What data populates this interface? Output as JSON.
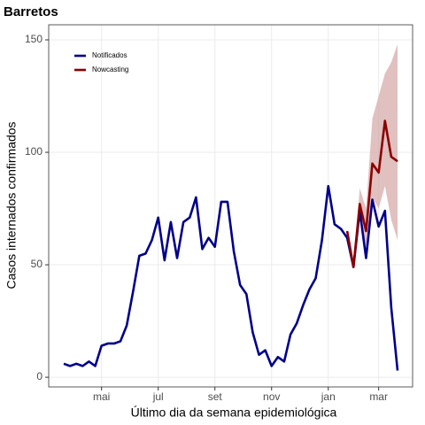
{
  "chart_data": {
    "type": "line",
    "title": "Barretos",
    "x_label": "Último dia da semana epidemiológica",
    "y_label": "Casos internados confirmados",
    "categories": [
      null,
      null,
      null,
      null,
      null,
      null,
      "mai",
      null,
      null,
      null,
      null,
      null,
      null,
      null,
      null,
      "jul",
      null,
      null,
      null,
      null,
      null,
      null,
      null,
      null,
      "set",
      null,
      null,
      null,
      null,
      null,
      null,
      null,
      null,
      "nov",
      null,
      null,
      null,
      null,
      null,
      null,
      null,
      null,
      "jan",
      null,
      null,
      null,
      null,
      null,
      null,
      null,
      "mar",
      null,
      null,
      null
    ],
    "series": [
      {
        "name": "Notificados",
        "color": "#00008b",
        "values": [
          6,
          5,
          6,
          5,
          7,
          5,
          14,
          15,
          15,
          16,
          23,
          38,
          54,
          55,
          61,
          71,
          52,
          69,
          53,
          69,
          71,
          80,
          57,
          62,
          58,
          78,
          78,
          56,
          41,
          37,
          20,
          10,
          12,
          5,
          9,
          7,
          19,
          24,
          32,
          39,
          44,
          61,
          85,
          68,
          66,
          62,
          49,
          74,
          53,
          79,
          67,
          74,
          31,
          3
        ]
      },
      {
        "name": "Nowcasting",
        "color": "#8b0000",
        "band_color": "#d4a5a5",
        "values": [
          null,
          null,
          null,
          null,
          null,
          null,
          null,
          null,
          null,
          null,
          null,
          null,
          null,
          null,
          null,
          null,
          null,
          null,
          null,
          null,
          null,
          null,
          null,
          null,
          null,
          null,
          null,
          null,
          null,
          null,
          null,
          null,
          null,
          null,
          null,
          null,
          null,
          null,
          null,
          null,
          null,
          null,
          null,
          null,
          null,
          65,
          49,
          77,
          65,
          95,
          91,
          114,
          98,
          96
        ],
        "lower": [
          null,
          null,
          null,
          null,
          null,
          null,
          null,
          null,
          null,
          null,
          null,
          null,
          null,
          null,
          null,
          null,
          null,
          null,
          null,
          null,
          null,
          null,
          null,
          null,
          null,
          null,
          null,
          null,
          null,
          null,
          null,
          null,
          null,
          null,
          null,
          null,
          null,
          null,
          null,
          null,
          null,
          null,
          null,
          null,
          null,
          65,
          49,
          70,
          58,
          80,
          75,
          85,
          70,
          61
        ],
        "upper": [
          null,
          null,
          null,
          null,
          null,
          null,
          null,
          null,
          null,
          null,
          null,
          null,
          null,
          null,
          null,
          null,
          null,
          null,
          null,
          null,
          null,
          null,
          null,
          null,
          null,
          null,
          null,
          null,
          null,
          null,
          null,
          null,
          null,
          null,
          null,
          null,
          null,
          null,
          null,
          null,
          null,
          null,
          null,
          null,
          null,
          65,
          50,
          84,
          75,
          115,
          125,
          135,
          140,
          148
        ]
      }
    ],
    "ylim": [
      -4.3,
      156.7
    ],
    "yticks": [
      0,
      50,
      100,
      150
    ],
    "grid": true,
    "legend": "top-left"
  }
}
